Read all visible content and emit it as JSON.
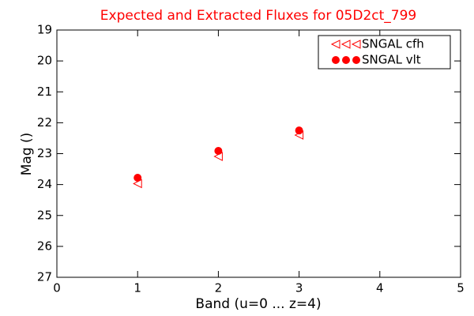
{
  "chart_data": {
    "type": "scatter",
    "title": "Expected and Extracted Fluxes for 05D2ct_799",
    "title_color": "#ff0000",
    "x_label": "Band (u=0 ... z=4)",
    "y_label": "Mag ()",
    "xlim": [
      0,
      5
    ],
    "xticks": [
      0,
      1,
      2,
      3,
      4,
      5
    ],
    "ylim": [
      27,
      19
    ],
    "yticks": [
      19,
      20,
      21,
      22,
      23,
      24,
      25,
      26,
      27
    ],
    "legend": "upper right",
    "series": [
      {
        "name": "SNGAL cfh",
        "color": "#ff0000",
        "marker": "triangle-left",
        "x": [
          1,
          2,
          3
        ],
        "values": [
          23.97,
          23.09,
          22.4
        ]
      },
      {
        "name": "SNGAL vlt",
        "color": "#ff0000",
        "marker": "circle",
        "x": [
          1,
          2,
          3
        ],
        "values": [
          23.78,
          22.91,
          22.25
        ]
      }
    ]
  }
}
